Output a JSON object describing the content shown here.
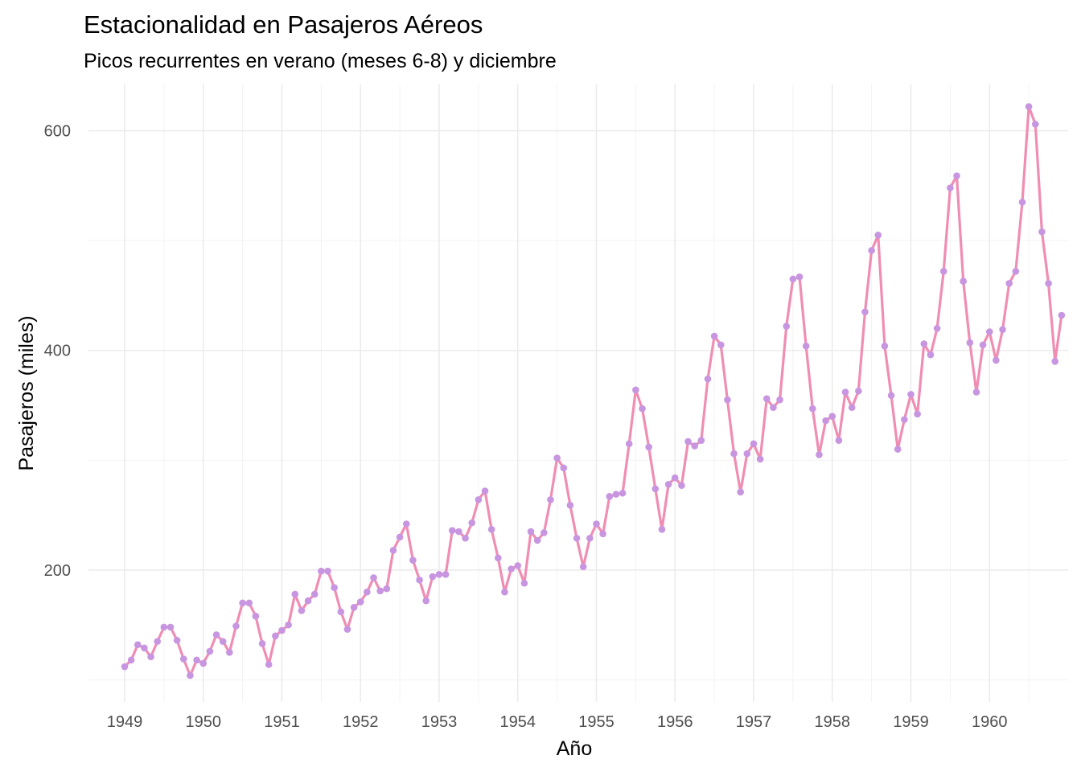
{
  "chart_data": {
    "type": "line",
    "title": "Estacionalidad en Pasajeros Aéreos",
    "subtitle": "Picos recurrentes en verano (meses 6-8) y diciembre",
    "xlabel": "Año",
    "ylabel": "Pasajeros (miles)",
    "x_ticks": [
      "1949",
      "1950",
      "1951",
      "1952",
      "1953",
      "1954",
      "1955",
      "1956",
      "1957",
      "1958",
      "1959",
      "1960"
    ],
    "y_ticks": [
      200,
      400,
      600
    ],
    "xlim": [
      1948.54,
      1961.0
    ],
    "ylim": [
      79.8,
      642.2
    ],
    "grid": true,
    "legend": "none",
    "colors": {
      "line": "#f08db3",
      "points": "#c896e0"
    },
    "series": [
      {
        "x_start": 1949.0,
        "x_step": 0.08333333,
        "values": [
          112,
          118,
          132,
          129,
          121,
          135,
          148,
          148,
          136,
          119,
          104,
          118,
          115,
          126,
          141,
          135,
          125,
          149,
          170,
          170,
          158,
          133,
          114,
          140,
          145,
          150,
          178,
          163,
          172,
          178,
          199,
          199,
          184,
          162,
          146,
          166,
          171,
          180,
          193,
          181,
          183,
          218,
          230,
          242,
          209,
          191,
          172,
          194,
          196,
          196,
          236,
          235,
          229,
          243,
          264,
          272,
          237,
          211,
          180,
          201,
          204,
          188,
          235,
          227,
          234,
          264,
          302,
          293,
          259,
          229,
          203,
          229,
          242,
          233,
          267,
          269,
          270,
          315,
          364,
          347,
          312,
          274,
          237,
          278,
          284,
          277,
          317,
          313,
          318,
          374,
          413,
          405,
          355,
          306,
          271,
          306,
          315,
          301,
          356,
          348,
          355,
          422,
          465,
          467,
          404,
          347,
          305,
          336,
          340,
          318,
          362,
          348,
          363,
          435,
          491,
          505,
          404,
          359,
          310,
          337,
          360,
          342,
          406,
          396,
          420,
          472,
          548,
          559,
          463,
          407,
          362,
          405,
          417,
          391,
          419,
          461,
          472,
          535,
          622,
          606,
          508,
          461,
          390,
          432
        ]
      }
    ]
  }
}
